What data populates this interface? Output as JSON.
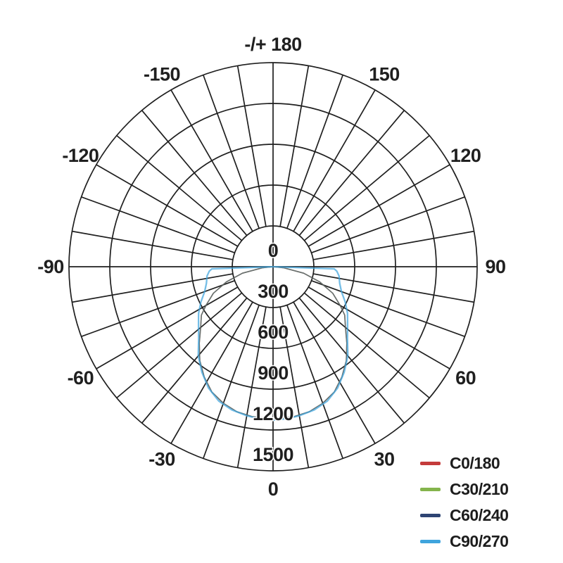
{
  "chart_data": {
    "type": "line",
    "subtype": "polar-photometric-distribution",
    "title": "",
    "background": "#ffffff",
    "grid": {
      "color": "#1f1f1f",
      "spoke_step_deg": 10,
      "labeled_step_deg": 30,
      "grid_on": true
    },
    "angular_axis": {
      "zero_position": "bottom",
      "labels": [
        {
          "value": 180,
          "text": "-/+ 180"
        },
        {
          "value": -150,
          "text": "-150"
        },
        {
          "value": 150,
          "text": "150"
        },
        {
          "value": -120,
          "text": "-120"
        },
        {
          "value": 120,
          "text": "120"
        },
        {
          "value": -90,
          "text": "-90"
        },
        {
          "value": 90,
          "text": "90"
        },
        {
          "value": -60,
          "text": "-60"
        },
        {
          "value": 60,
          "text": "60"
        },
        {
          "value": -30,
          "text": "-30"
        },
        {
          "value": 30,
          "text": "30"
        },
        {
          "value": 0,
          "text": "0"
        }
      ]
    },
    "radial_axis": {
      "min": 0,
      "max": 1500,
      "ring_values": [
        300,
        600,
        900,
        1200,
        1500
      ],
      "labels": [
        {
          "value": 0,
          "text": "0"
        },
        {
          "value": 300,
          "text": "300"
        },
        {
          "value": 600,
          "text": "600"
        },
        {
          "value": 900,
          "text": "900"
        },
        {
          "value": 1200,
          "text": "1200"
        },
        {
          "value": 1500,
          "text": "1500"
        }
      ],
      "label_color": "#1f1f1f"
    },
    "legend_position": "bottom-right",
    "series": [
      {
        "label": "C0/180",
        "color": "#c43b3b",
        "plot_opacity": 0.55,
        "plot_width": 1.6,
        "points": [
          [
            -90,
            0
          ],
          [
            -84,
            80
          ],
          [
            -78,
            230
          ],
          [
            -72,
            360
          ],
          [
            -66,
            480
          ],
          [
            -60,
            570
          ],
          [
            -56,
            635
          ],
          [
            -50,
            695
          ],
          [
            -44,
            780
          ],
          [
            -38,
            875
          ],
          [
            -32,
            955
          ],
          [
            -26,
            1025
          ],
          [
            -20,
            1068
          ],
          [
            -14,
            1098
          ],
          [
            -8,
            1112
          ],
          [
            0,
            1120
          ],
          [
            8,
            1112
          ],
          [
            14,
            1098
          ],
          [
            20,
            1068
          ],
          [
            26,
            1025
          ],
          [
            32,
            955
          ],
          [
            38,
            875
          ],
          [
            44,
            780
          ],
          [
            50,
            695
          ],
          [
            56,
            635
          ],
          [
            60,
            570
          ],
          [
            66,
            480
          ],
          [
            72,
            360
          ],
          [
            78,
            230
          ],
          [
            84,
            80
          ],
          [
            90,
            0
          ]
        ]
      },
      {
        "label": "C30/210",
        "color": "#84b44c",
        "plot_opacity": 0.55,
        "plot_width": 1.6,
        "points": [
          [
            -90,
            0
          ],
          [
            -84,
            80
          ],
          [
            -78,
            230
          ],
          [
            -72,
            360
          ],
          [
            -66,
            480
          ],
          [
            -60,
            570
          ],
          [
            -56,
            635
          ],
          [
            -50,
            695
          ],
          [
            -44,
            780
          ],
          [
            -38,
            875
          ],
          [
            -32,
            955
          ],
          [
            -26,
            1025
          ],
          [
            -20,
            1068
          ],
          [
            -14,
            1098
          ],
          [
            -8,
            1112
          ],
          [
            0,
            1120
          ],
          [
            8,
            1112
          ],
          [
            14,
            1098
          ],
          [
            20,
            1068
          ],
          [
            26,
            1025
          ],
          [
            32,
            955
          ],
          [
            38,
            875
          ],
          [
            44,
            780
          ],
          [
            50,
            695
          ],
          [
            56,
            635
          ],
          [
            60,
            570
          ],
          [
            66,
            480
          ],
          [
            72,
            360
          ],
          [
            78,
            230
          ],
          [
            84,
            80
          ],
          [
            90,
            0
          ]
        ]
      },
      {
        "label": "C60/240",
        "color": "#2e4473",
        "plot_opacity": 0.55,
        "plot_width": 1.6,
        "points": [
          [
            -90,
            0
          ],
          [
            -84,
            80
          ],
          [
            -78,
            230
          ],
          [
            -72,
            360
          ],
          [
            -66,
            480
          ],
          [
            -60,
            570
          ],
          [
            -56,
            635
          ],
          [
            -50,
            695
          ],
          [
            -44,
            780
          ],
          [
            -38,
            875
          ],
          [
            -32,
            955
          ],
          [
            -26,
            1025
          ],
          [
            -20,
            1068
          ],
          [
            -14,
            1098
          ],
          [
            -8,
            1112
          ],
          [
            0,
            1120
          ],
          [
            8,
            1112
          ],
          [
            14,
            1098
          ],
          [
            20,
            1068
          ],
          [
            26,
            1025
          ],
          [
            32,
            955
          ],
          [
            38,
            875
          ],
          [
            44,
            780
          ],
          [
            50,
            695
          ],
          [
            56,
            635
          ],
          [
            60,
            570
          ],
          [
            66,
            480
          ],
          [
            72,
            360
          ],
          [
            78,
            230
          ],
          [
            84,
            80
          ],
          [
            90,
            0
          ]
        ]
      },
      {
        "label": "C90/270",
        "color": "#3fa4dd",
        "plot_opacity": 0.72,
        "plot_width": 2.3,
        "points": [
          [
            -90,
            0
          ],
          [
            -88,
            450
          ],
          [
            -86,
            470
          ],
          [
            -82,
            490
          ],
          [
            -76,
            505
          ],
          [
            -70,
            535
          ],
          [
            -64,
            590
          ],
          [
            -58,
            645
          ],
          [
            -52,
            695
          ],
          [
            -46,
            760
          ],
          [
            -40,
            855
          ],
          [
            -34,
            935
          ],
          [
            -28,
            1010
          ],
          [
            -22,
            1065
          ],
          [
            -16,
            1095
          ],
          [
            -10,
            1112
          ],
          [
            -5,
            1122
          ],
          [
            0,
            1127
          ],
          [
            5,
            1122
          ],
          [
            10,
            1112
          ],
          [
            16,
            1095
          ],
          [
            22,
            1065
          ],
          [
            28,
            1010
          ],
          [
            34,
            935
          ],
          [
            40,
            855
          ],
          [
            46,
            760
          ],
          [
            52,
            695
          ],
          [
            58,
            645
          ],
          [
            64,
            590
          ],
          [
            70,
            535
          ],
          [
            76,
            505
          ],
          [
            82,
            490
          ],
          [
            86,
            470
          ],
          [
            88,
            450
          ],
          [
            90,
            0
          ]
        ]
      }
    ]
  }
}
